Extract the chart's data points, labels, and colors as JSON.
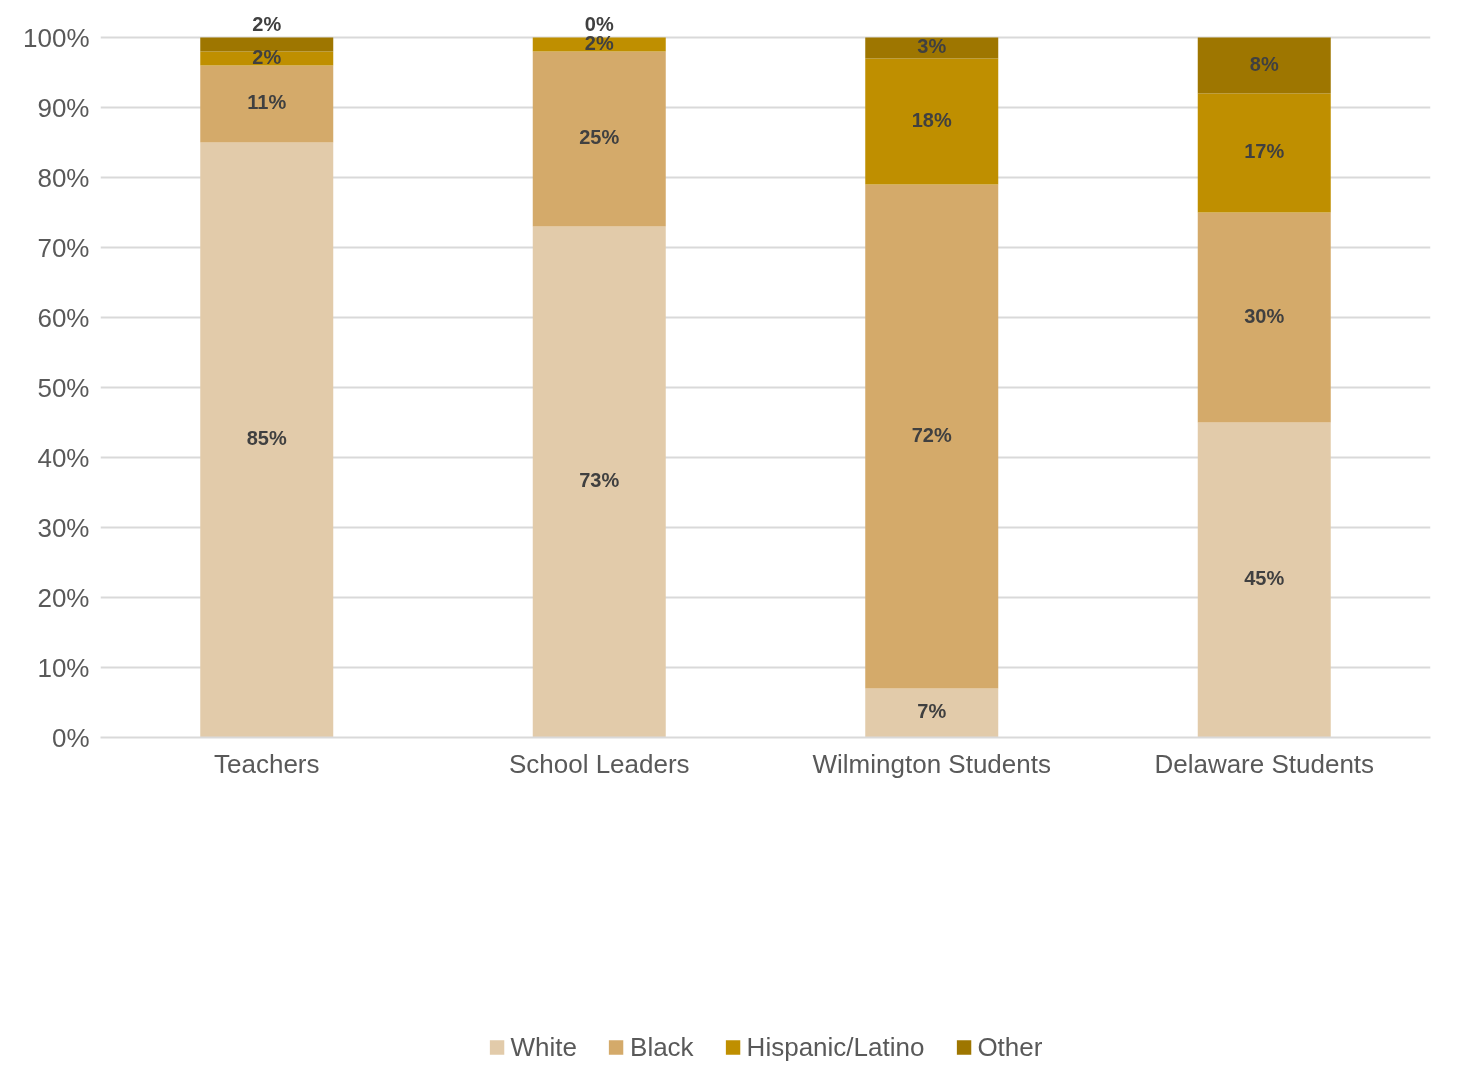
{
  "chart_data": {
    "type": "bar",
    "stacked": true,
    "categories": [
      "Teachers",
      "School Leaders",
      "Wilmington Students",
      "Delaware Students"
    ],
    "series": [
      {
        "name": "White",
        "color": "#e2cbaa",
        "values": [
          85,
          73,
          7,
          45
        ]
      },
      {
        "name": "Black",
        "color": "#d4aa6a",
        "values": [
          11,
          25,
          72,
          30
        ]
      },
      {
        "name": "Hispanic/Latino",
        "color": "#bf8f00",
        "values": [
          2,
          2,
          18,
          17
        ]
      },
      {
        "name": "Other",
        "color": "#9e7600",
        "values": [
          2,
          0,
          3,
          8
        ]
      }
    ],
    "ylim": [
      0,
      100
    ],
    "yticks": [
      {
        "value": 0,
        "label": "0%"
      },
      {
        "value": 10,
        "label": "10%"
      },
      {
        "value": 20,
        "label": "20%"
      },
      {
        "value": 30,
        "label": "30%"
      },
      {
        "value": 40,
        "label": "40%"
      },
      {
        "value": 50,
        "label": "50%"
      },
      {
        "value": 60,
        "label": "60%"
      },
      {
        "value": 70,
        "label": "70%"
      },
      {
        "value": 80,
        "label": "80%"
      },
      {
        "value": 90,
        "label": "90%"
      },
      {
        "value": 100,
        "label": "100%"
      }
    ],
    "value_labels": [
      [
        "85%",
        "73%",
        "7%",
        "45%"
      ],
      [
        "11%",
        "25%",
        "72%",
        "30%"
      ],
      [
        "2%",
        "2%",
        "18%",
        "17%"
      ],
      [
        "2%",
        "0%",
        "3%",
        "8%"
      ]
    ],
    "grid": "y",
    "legend": "bottom"
  }
}
